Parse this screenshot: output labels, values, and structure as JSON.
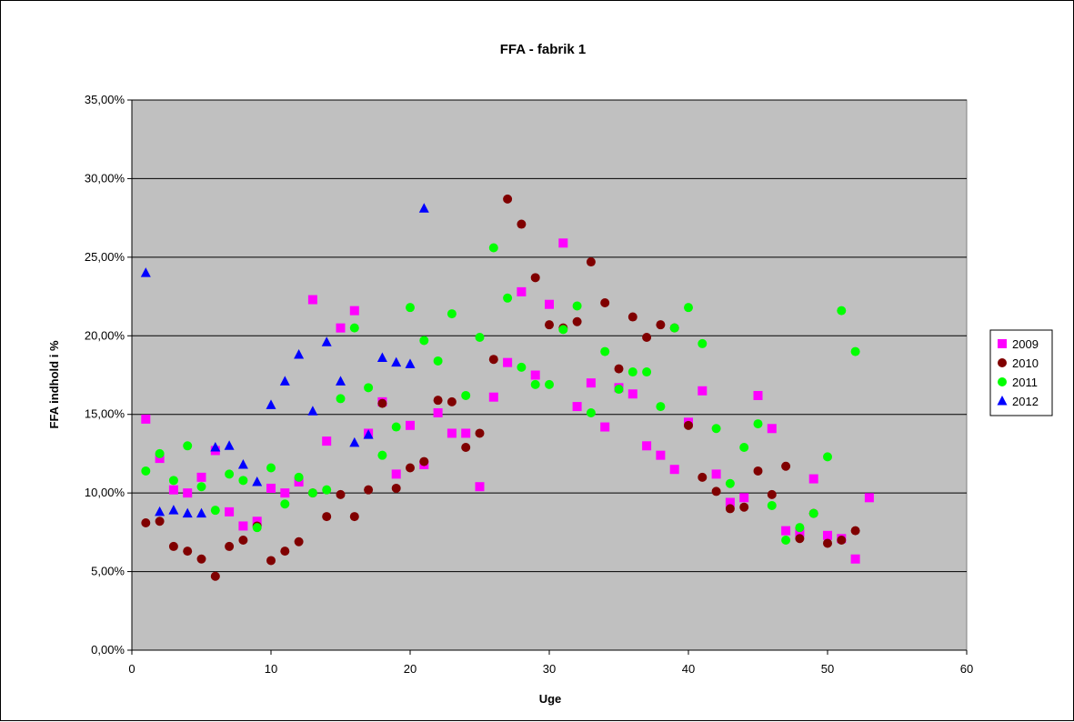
{
  "chart_data": {
    "type": "scatter",
    "title": "FFA - fabrik 1",
    "xlabel": "Uge",
    "ylabel": "FFA indhold i %",
    "xlim": [
      0,
      60
    ],
    "ylim": [
      0,
      0.35
    ],
    "x_ticks": [
      0,
      10,
      20,
      30,
      40,
      50,
      60
    ],
    "x_tick_labels": [
      "0",
      "10",
      "20",
      "30",
      "40",
      "50",
      "60"
    ],
    "y_ticks": [
      0,
      0.05,
      0.1,
      0.15,
      0.2,
      0.25,
      0.3,
      0.35
    ],
    "y_tick_labels": [
      "0,00%",
      "5,00%",
      "10,00%",
      "15,00%",
      "20,00%",
      "25,00%",
      "30,00%",
      "35,00%"
    ],
    "plot_background": "#c0c0c0",
    "grid": "horizontal",
    "legend_position": "right",
    "series": [
      {
        "name": "2009",
        "color": "#ff00ff",
        "marker": "square",
        "points": [
          [
            1,
            0.147
          ],
          [
            2,
            0.122
          ],
          [
            3,
            0.102
          ],
          [
            4,
            0.1
          ],
          [
            5,
            0.11
          ],
          [
            6,
            0.127
          ],
          [
            7,
            0.088
          ],
          [
            8,
            0.079
          ],
          [
            9,
            0.082
          ],
          [
            10,
            0.103
          ],
          [
            11,
            0.1
          ],
          [
            12,
            0.107
          ],
          [
            13,
            0.223
          ],
          [
            14,
            0.133
          ],
          [
            15,
            0.205
          ],
          [
            16,
            0.216
          ],
          [
            17,
            0.138
          ],
          [
            18,
            0.158
          ],
          [
            19,
            0.112
          ],
          [
            20,
            0.143
          ],
          [
            21,
            0.118
          ],
          [
            22,
            0.151
          ],
          [
            23,
            0.138
          ],
          [
            24,
            0.138
          ],
          [
            25,
            0.104
          ],
          [
            26,
            0.161
          ],
          [
            27,
            0.183
          ],
          [
            28,
            0.228
          ],
          [
            29,
            0.175
          ],
          [
            30,
            0.22
          ],
          [
            31,
            0.259
          ],
          [
            32,
            0.155
          ],
          [
            33,
            0.17
          ],
          [
            34,
            0.142
          ],
          [
            35,
            0.167
          ],
          [
            36,
            0.163
          ],
          [
            37,
            0.13
          ],
          [
            38,
            0.124
          ],
          [
            39,
            0.115
          ],
          [
            40,
            0.145
          ],
          [
            41,
            0.165
          ],
          [
            42,
            0.112
          ],
          [
            43,
            0.094
          ],
          [
            44,
            0.097
          ],
          [
            45,
            0.162
          ],
          [
            46,
            0.141
          ],
          [
            47,
            0.076
          ],
          [
            48,
            0.075
          ],
          [
            49,
            0.109
          ],
          [
            50,
            0.073
          ],
          [
            51,
            0.071
          ],
          [
            52,
            0.058
          ],
          [
            53,
            0.097
          ]
        ]
      },
      {
        "name": "2010",
        "color": "#800000",
        "marker": "circle",
        "points": [
          [
            1,
            0.081
          ],
          [
            2,
            0.082
          ],
          [
            3,
            0.066
          ],
          [
            4,
            0.063
          ],
          [
            5,
            0.058
          ],
          [
            6,
            0.047
          ],
          [
            7,
            0.066
          ],
          [
            8,
            0.07
          ],
          [
            9,
            0.079
          ],
          [
            10,
            0.057
          ],
          [
            11,
            0.063
          ],
          [
            12,
            0.069
          ],
          [
            13,
            0.1
          ],
          [
            14,
            0.085
          ],
          [
            15,
            0.099
          ],
          [
            16,
            0.085
          ],
          [
            17,
            0.102
          ],
          [
            18,
            0.157
          ],
          [
            19,
            0.103
          ],
          [
            20,
            0.116
          ],
          [
            21,
            0.12
          ],
          [
            22,
            0.159
          ],
          [
            23,
            0.158
          ],
          [
            24,
            0.129
          ],
          [
            25,
            0.138
          ],
          [
            26,
            0.185
          ],
          [
            27,
            0.287
          ],
          [
            28,
            0.271
          ],
          [
            29,
            0.237
          ],
          [
            30,
            0.207
          ],
          [
            31,
            0.205
          ],
          [
            32,
            0.209
          ],
          [
            33,
            0.247
          ],
          [
            34,
            0.221
          ],
          [
            35,
            0.179
          ],
          [
            36,
            0.212
          ],
          [
            37,
            0.199
          ],
          [
            38,
            0.207
          ],
          [
            39,
            0.205
          ],
          [
            40,
            0.143
          ],
          [
            41,
            0.11
          ],
          [
            42,
            0.101
          ],
          [
            43,
            0.09
          ],
          [
            44,
            0.091
          ],
          [
            45,
            0.114
          ],
          [
            46,
            0.099
          ],
          [
            47,
            0.117
          ],
          [
            48,
            0.071
          ],
          [
            49,
            0.087
          ],
          [
            50,
            0.068
          ],
          [
            51,
            0.07
          ],
          [
            52,
            0.076
          ]
        ]
      },
      {
        "name": "2011",
        "color": "#00ff00",
        "marker": "circle",
        "points": [
          [
            1,
            0.114
          ],
          [
            2,
            0.125
          ],
          [
            3,
            0.108
          ],
          [
            4,
            0.13
          ],
          [
            5,
            0.104
          ],
          [
            6,
            0.089
          ],
          [
            7,
            0.112
          ],
          [
            8,
            0.108
          ],
          [
            9,
            0.078
          ],
          [
            10,
            0.116
          ],
          [
            11,
            0.093
          ],
          [
            12,
            0.11
          ],
          [
            13,
            0.1
          ],
          [
            14,
            0.102
          ],
          [
            15,
            0.16
          ],
          [
            16,
            0.205
          ],
          [
            17,
            0.167
          ],
          [
            18,
            0.124
          ],
          [
            19,
            0.142
          ],
          [
            20,
            0.218
          ],
          [
            21,
            0.197
          ],
          [
            22,
            0.184
          ],
          [
            23,
            0.214
          ],
          [
            24,
            0.162
          ],
          [
            25,
            0.199
          ],
          [
            26,
            0.256
          ],
          [
            27,
            0.224
          ],
          [
            28,
            0.18
          ],
          [
            29,
            0.169
          ],
          [
            30,
            0.169
          ],
          [
            31,
            0.204
          ],
          [
            32,
            0.219
          ],
          [
            33,
            0.151
          ],
          [
            34,
            0.19
          ],
          [
            35,
            0.166
          ],
          [
            36,
            0.177
          ],
          [
            37,
            0.177
          ],
          [
            38,
            0.155
          ],
          [
            39,
            0.205
          ],
          [
            40,
            0.218
          ],
          [
            41,
            0.195
          ],
          [
            42,
            0.141
          ],
          [
            43,
            0.106
          ],
          [
            44,
            0.129
          ],
          [
            45,
            0.144
          ],
          [
            46,
            0.092
          ],
          [
            47,
            0.07
          ],
          [
            48,
            0.078
          ],
          [
            49,
            0.087
          ],
          [
            50,
            0.123
          ],
          [
            51,
            0.216
          ],
          [
            52,
            0.19
          ]
        ]
      },
      {
        "name": "2012",
        "color": "#0000ff",
        "marker": "triangle",
        "points": [
          [
            1,
            0.24
          ],
          [
            2,
            0.088
          ],
          [
            3,
            0.089
          ],
          [
            4,
            0.087
          ],
          [
            5,
            0.087
          ],
          [
            6,
            0.129
          ],
          [
            7,
            0.13
          ],
          [
            8,
            0.118
          ],
          [
            9,
            0.107
          ],
          [
            10,
            0.156
          ],
          [
            11,
            0.171
          ],
          [
            12,
            0.188
          ],
          [
            13,
            0.152
          ],
          [
            14,
            0.196
          ],
          [
            15,
            0.171
          ],
          [
            16,
            0.132
          ],
          [
            17,
            0.137
          ],
          [
            18,
            0.186
          ],
          [
            19,
            0.183
          ],
          [
            20,
            0.182
          ],
          [
            21,
            0.281
          ]
        ]
      }
    ]
  }
}
